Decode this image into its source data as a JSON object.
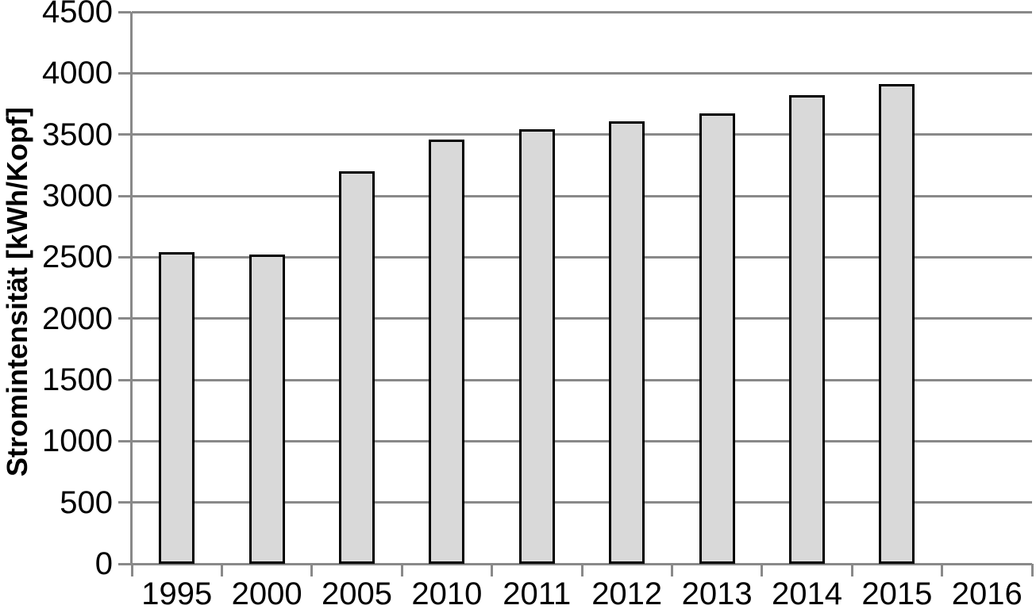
{
  "chart_data": {
    "type": "bar",
    "title": "",
    "xlabel": "",
    "ylabel": "Stromintensität [kWh/Kopf]",
    "categories": [
      "1995",
      "2000",
      "2005",
      "2010",
      "2011",
      "2012",
      "2013",
      "2014",
      "2015",
      "2016"
    ],
    "values": [
      2540,
      2520,
      3200,
      3460,
      3545,
      3610,
      3670,
      3820,
      3910,
      null
    ],
    "ylim": [
      0,
      4500
    ],
    "ytick_step": 500,
    "ytick_labels": [
      "0",
      "500",
      "1000",
      "1500",
      "2000",
      "2500",
      "3000",
      "3500",
      "4000",
      "4500"
    ],
    "grid": true,
    "legend_position": "none",
    "colors": {
      "bar_fill": "#d9d9d9",
      "bar_border": "#000000",
      "grid": "#898989",
      "text": "#000000",
      "background": "#ffffff"
    }
  }
}
